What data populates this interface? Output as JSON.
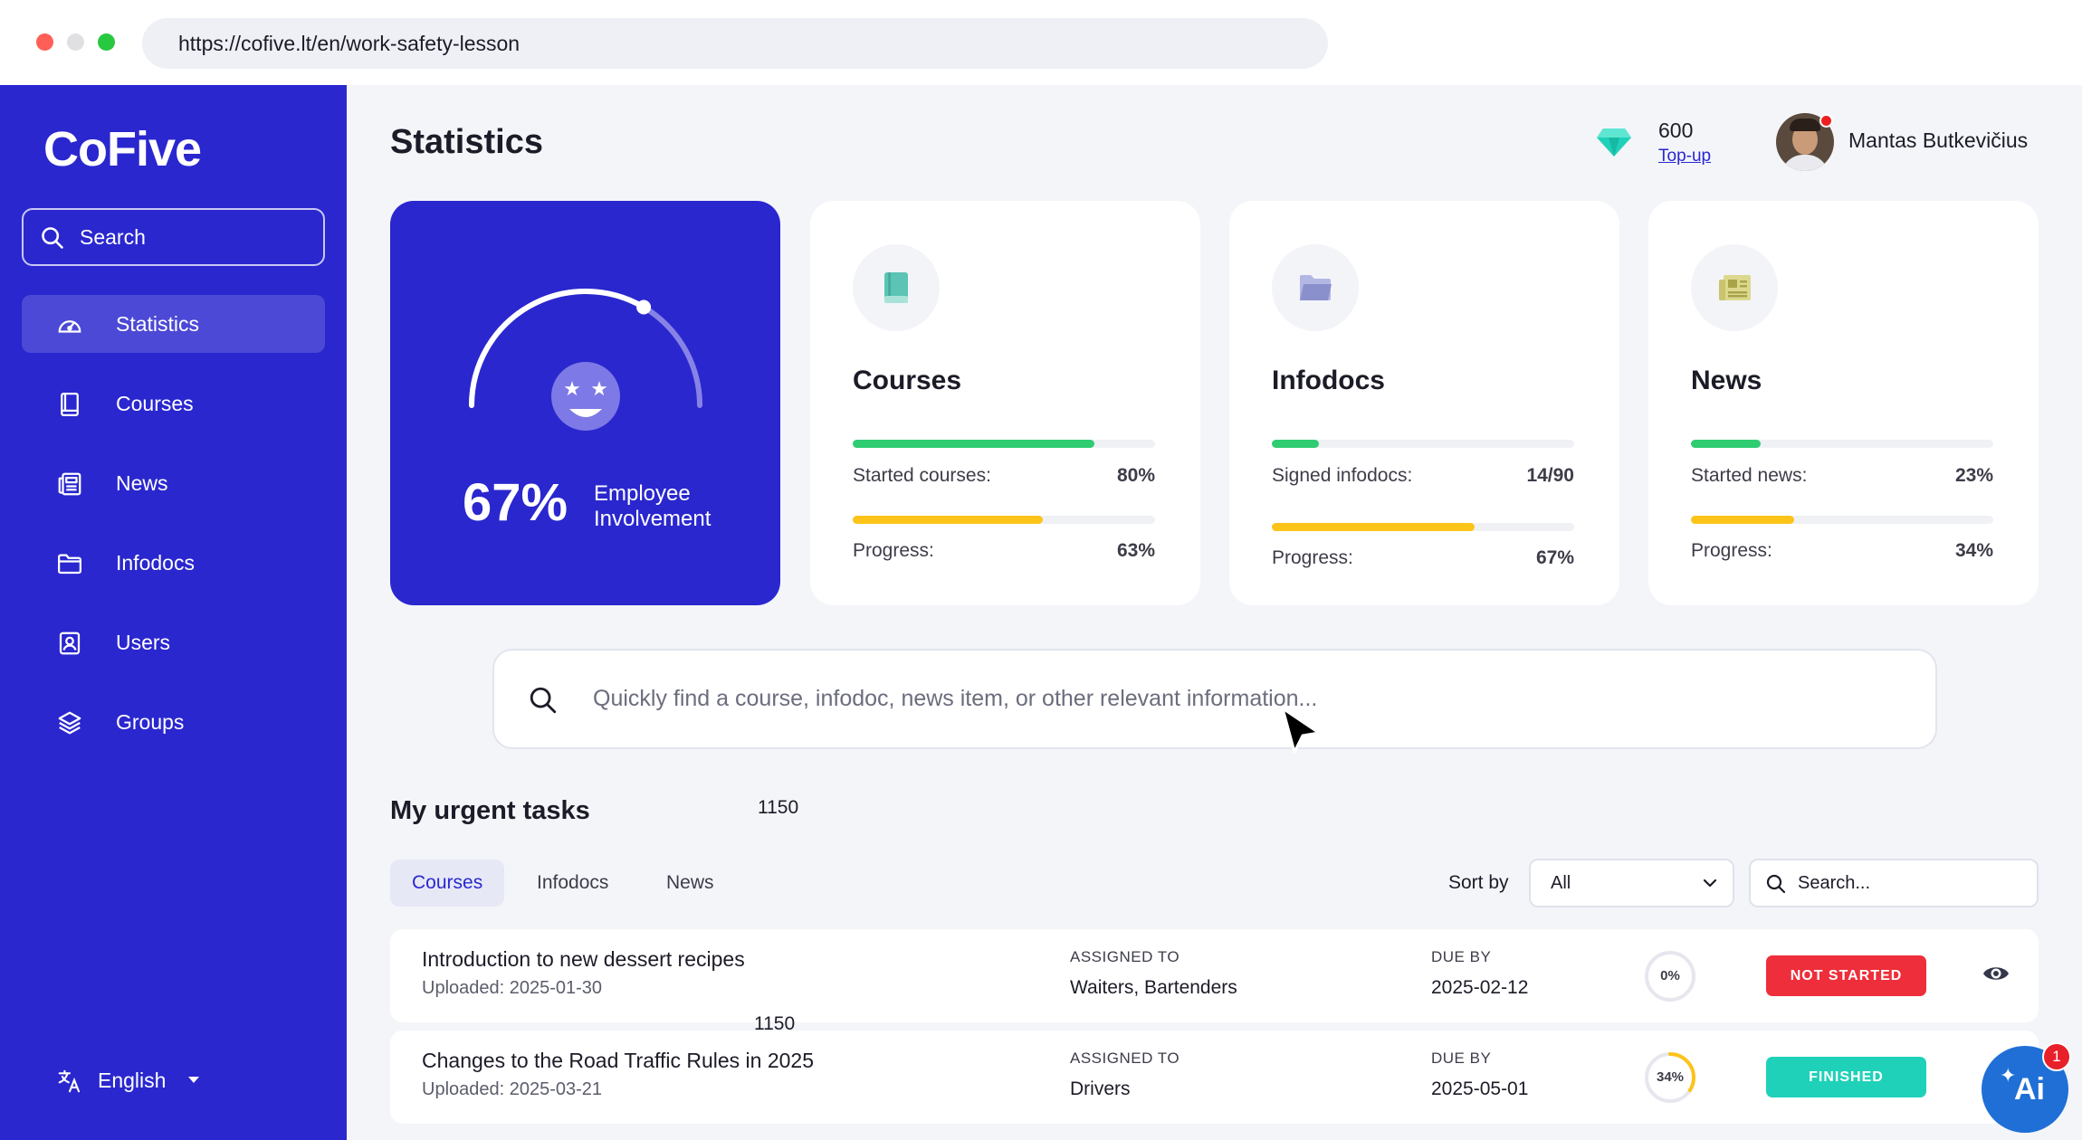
{
  "browser": {
    "url": "https://cofive.lt/en/work-safety-lesson"
  },
  "sidebar": {
    "logo": "CoFive",
    "search_placeholder": "Search",
    "items": [
      {
        "label": "Statistics",
        "icon": "gauge-icon",
        "active": true
      },
      {
        "label": "Courses",
        "icon": "book-icon"
      },
      {
        "label": "News",
        "icon": "newspaper-icon"
      },
      {
        "label": "Infodocs",
        "icon": "folder-icon"
      },
      {
        "label": "Users",
        "icon": "user-icon"
      },
      {
        "label": "Groups",
        "icon": "layers-icon"
      }
    ],
    "language": "English"
  },
  "header": {
    "title": "Statistics",
    "credits": "600",
    "topup": "Top-up",
    "user_name": "Mantas Butkevičius"
  },
  "hero": {
    "percent": "67%",
    "caption": "Employee Involvement",
    "gauge_value": 0.67
  },
  "cards": {
    "courses": {
      "title": "Courses",
      "row1_label": "Started courses:",
      "row1_value": "80%",
      "row1_fraction": 0.8,
      "row2_label": "Progress:",
      "row2_value": "63%",
      "row2_fraction": 0.63,
      "icon": "book-icon",
      "accent": "#5bc4b4"
    },
    "infodocs": {
      "title": "Infodocs",
      "row1_label": "Signed infodocs:",
      "row1_value": "14/90",
      "row1_fraction": 0.155,
      "row2_label": "Progress:",
      "row2_value": "67%",
      "row2_fraction": 0.67,
      "icon": "folder-icon",
      "accent": "#8a90cc"
    },
    "news": {
      "title": "News",
      "row1_label": "Started news:",
      "row1_value": "23%",
      "row1_fraction": 0.23,
      "row2_label": "Progress:",
      "row2_value": "34%",
      "row2_fraction": 0.34,
      "icon": "newspaper-icon",
      "accent": "#c9c46d"
    }
  },
  "colors": {
    "brand": "#2a27cf",
    "bar_green": "#2fcc71",
    "bar_yellow": "#fcc419",
    "not_started": "#ee2e3a",
    "finished": "#1fd1b8"
  },
  "quick_search": {
    "placeholder": "Quickly find a course, infodoc, news item, or other relevant information..."
  },
  "tasks": {
    "title": "My urgent tasks",
    "stray_number_1": "1150",
    "stray_number_2": "1150",
    "tabs": [
      "Courses",
      "Infodocs",
      "News"
    ],
    "sort_label": "Sort by",
    "sort_value": "All",
    "search_placeholder": "Search...",
    "rows": [
      {
        "title": "Introduction to new dessert recipes",
        "uploaded": "Uploaded: 2025-01-30",
        "assigned_header": "ASSIGNED TO",
        "assigned": "Waiters, Bartenders",
        "due_header": "DUE BY",
        "due": "2025-02-12",
        "progress": "0%",
        "progress_fraction": 0,
        "status": "NOT STARTED"
      },
      {
        "title": "Changes to the Road Traffic Rules in 2025",
        "uploaded": "Uploaded: 2025-03-21",
        "assigned_header": "ASSIGNED TO",
        "assigned": "Drivers",
        "due_header": "DUE BY",
        "due": "2025-05-01",
        "progress": "34%",
        "progress_fraction": 0.34,
        "status": "FINISHED"
      }
    ]
  },
  "ai_button": {
    "label": "Ai",
    "badge": "1"
  }
}
